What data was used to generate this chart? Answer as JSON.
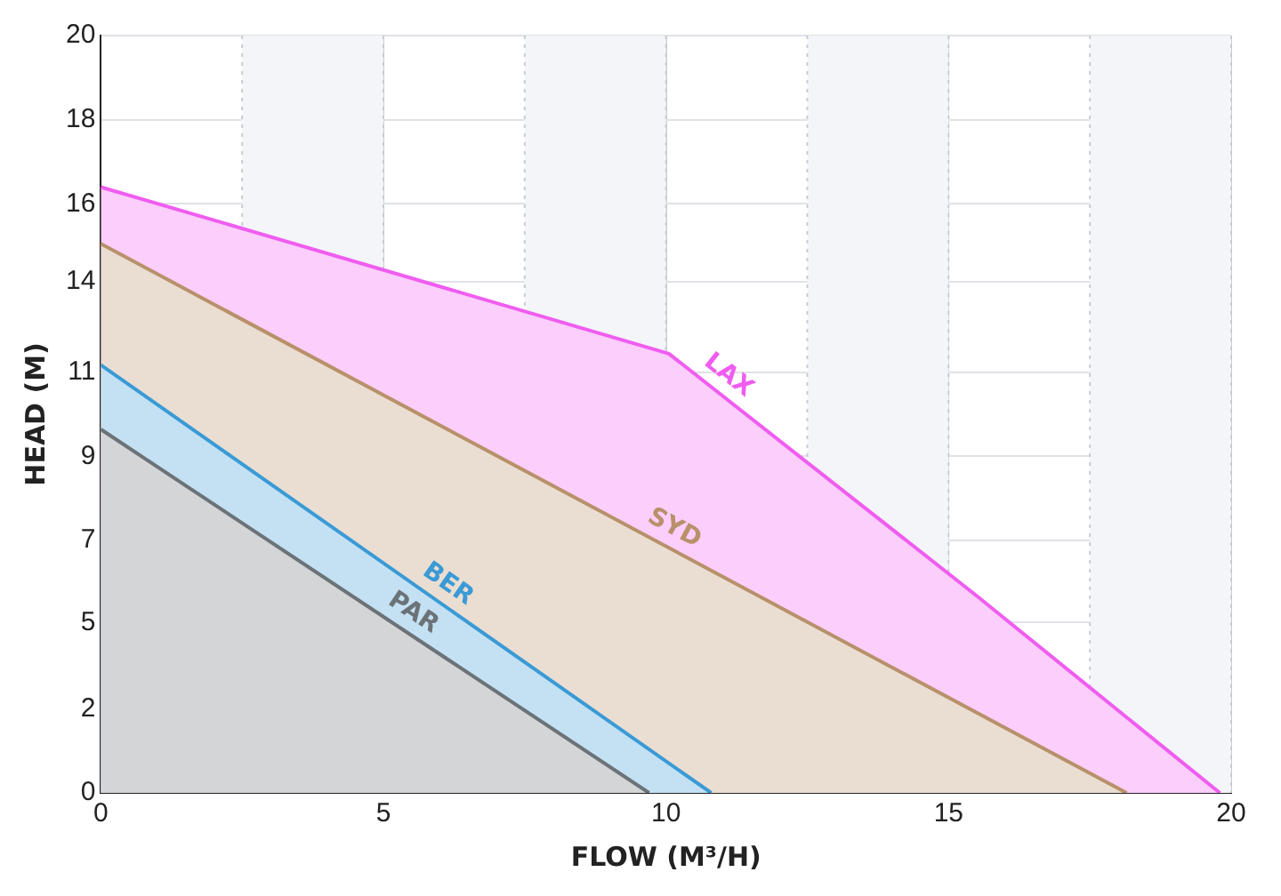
{
  "chart_data": {
    "type": "area",
    "xlabel": "FLOW (M³/H)",
    "ylabel": "HEAD (M)",
    "xlim": [
      0,
      20
    ],
    "xticks": [
      0,
      5,
      10,
      15,
      20
    ],
    "ylim": [
      0,
      20
    ],
    "yticks": [
      0,
      {
        "value": 2.222,
        "label": "2"
      },
      {
        "value": 4.5,
        "label": "5"
      },
      {
        "value": 6.667,
        "label": "7"
      },
      {
        "value": 8.889,
        "label": "9"
      },
      {
        "value": 11.111,
        "label": "11"
      },
      {
        "value": 13.5,
        "label": "14"
      },
      {
        "value": 15.556,
        "label": "16"
      },
      {
        "value": 17.778,
        "label": "18"
      },
      20
    ],
    "grid": true,
    "legend": false,
    "bands": [
      {
        "axis": "x",
        "from": 2.5,
        "to": 5,
        "color": "#f3f5f8"
      },
      {
        "axis": "x",
        "from": 7.5,
        "to": 10,
        "color": "#f3f5f8"
      },
      {
        "axis": "x",
        "from": 12.5,
        "to": 15,
        "color": "#f3f5f8"
      },
      {
        "axis": "x",
        "from": 17.5,
        "to": 20,
        "color": "#f3f5f8"
      }
    ],
    "series": [
      {
        "name": "LAX",
        "color": "#f05cf0",
        "x": [
          0,
          10.05,
          15.5,
          19.8
        ],
        "values": [
          16.0,
          11.6,
          5.2,
          0
        ]
      },
      {
        "name": "SYD",
        "color": "#b8906a",
        "x": [
          0,
          18.15
        ],
        "values": [
          14.5,
          0
        ]
      },
      {
        "name": "BER",
        "color": "#3a9ad6",
        "x": [
          0,
          10.8
        ],
        "values": [
          11.3,
          0
        ]
      },
      {
        "name": "PAR",
        "color": "#6b7378",
        "x": [
          0,
          9.7
        ],
        "values": [
          9.6,
          0
        ]
      }
    ]
  }
}
